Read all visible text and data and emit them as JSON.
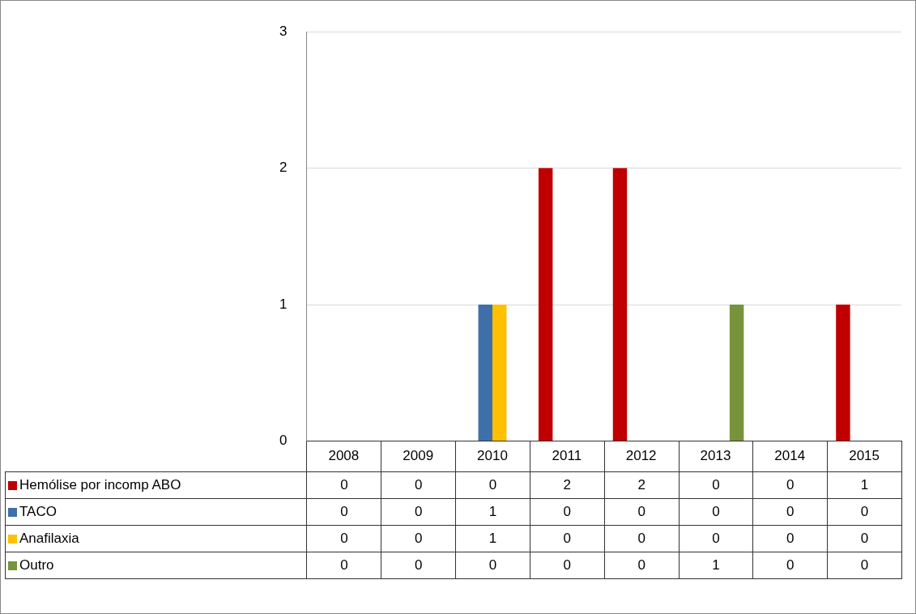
{
  "chart_data": {
    "type": "bar",
    "categories": [
      "2008",
      "2009",
      "2010",
      "2011",
      "2012",
      "2013",
      "2014",
      "2015"
    ],
    "series": [
      {
        "name": "Hemólise por incomp ABO",
        "color": "#c00000",
        "values": [
          0,
          0,
          0,
          2,
          2,
          0,
          0,
          1
        ]
      },
      {
        "name": "TACO",
        "color": "#3f6fa8",
        "values": [
          0,
          0,
          1,
          0,
          0,
          0,
          0,
          0
        ]
      },
      {
        "name": "Anafilaxia",
        "color": "#ffc000",
        "values": [
          0,
          0,
          1,
          0,
          0,
          0,
          0,
          0
        ]
      },
      {
        "name": "Outro",
        "color": "#77933c",
        "values": [
          0,
          0,
          0,
          0,
          0,
          1,
          0,
          0
        ]
      }
    ],
    "ylim": [
      0,
      3
    ],
    "yticks": [
      0,
      1,
      2,
      3
    ],
    "grid": "y",
    "legend": "bottom",
    "data_labels": true
  }
}
